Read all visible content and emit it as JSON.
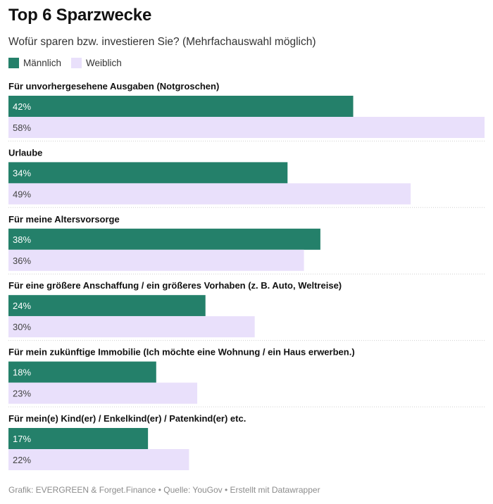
{
  "title": "Top 6 Sparzwecke",
  "subtitle": "Wofür sparen bzw. investieren Sie? (Mehrfachauswahl möglich)",
  "legend": [
    {
      "name": "Männlich",
      "color": "#24806a"
    },
    {
      "name": "Weiblich",
      "color": "#e9e0fb"
    }
  ],
  "footer": "Grafik: EVERGREEN & Forget.Finance • Quelle: YouGov • Erstellt mit Datawrapper",
  "chart_data": {
    "type": "bar",
    "orientation": "horizontal",
    "grouped": true,
    "xlim": [
      0,
      58
    ],
    "grid": false,
    "legend_position": "top-left",
    "categories": [
      "Für unvorhergesehene Ausgaben (Notgroschen)",
      "Urlaube",
      "Für meine Altersvorsorge",
      "Für eine größere Anschaffung / ein größeres Vorhaben (z. B. Auto, Weltreise)",
      "Für mein zukünftige Immobilie (Ich möchte eine Wohnung / ein Haus erwerben.)",
      "Für mein(e) Kind(er) / Enkelkind(er) / Patenkind(er) etc."
    ],
    "series": [
      {
        "name": "Männlich",
        "color": "#24806a",
        "label_color": "#ffffff",
        "values": [
          42,
          34,
          38,
          24,
          18,
          17
        ]
      },
      {
        "name": "Weiblich",
        "color": "#e9e0fb",
        "label_color": "#444444",
        "values": [
          58,
          49,
          36,
          30,
          23,
          22
        ]
      }
    ],
    "value_suffix": "%"
  }
}
